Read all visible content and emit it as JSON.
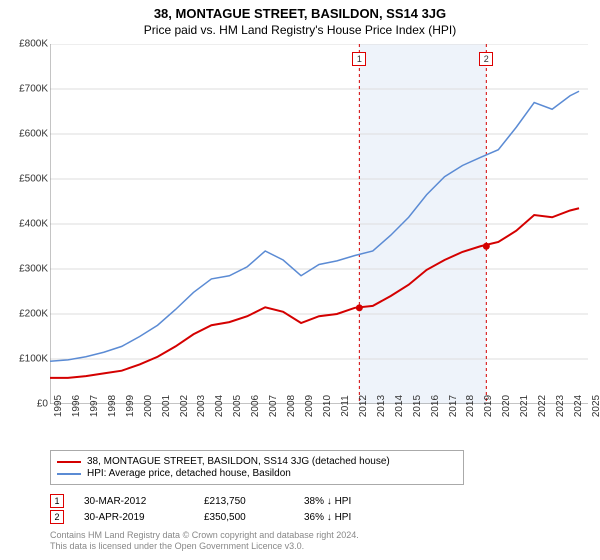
{
  "title": "38, MONTAGUE STREET, BASILDON, SS14 3JG",
  "subtitle": "Price paid vs. HM Land Registry's House Price Index (HPI)",
  "chart": {
    "type": "line",
    "background_color": "#ffffff",
    "grid_color": "#dddddd",
    "shade_color": "#eef3fa",
    "xlim": [
      1995,
      2025
    ],
    "ylim": [
      0,
      800000
    ],
    "ytick_step": 100000,
    "yticks": [
      "£0",
      "£100K",
      "£200K",
      "£300K",
      "£400K",
      "£500K",
      "£600K",
      "£700K",
      "£800K"
    ],
    "xticks": [
      "1995",
      "1996",
      "1997",
      "1998",
      "1999",
      "2000",
      "2001",
      "2002",
      "2003",
      "2004",
      "2005",
      "2006",
      "2007",
      "2008",
      "2009",
      "2010",
      "2011",
      "2012",
      "2013",
      "2014",
      "2015",
      "2016",
      "2017",
      "2018",
      "2019",
      "2020",
      "2021",
      "2022",
      "2023",
      "2024",
      "2025"
    ],
    "label_fontsize": 10,
    "title_fontsize": 13,
    "series": [
      {
        "name": "property",
        "label": "38, MONTAGUE STREET, BASILDON, SS14 3JG (detached house)",
        "color": "#d40000",
        "line_width": 2,
        "data": [
          [
            1995,
            58000
          ],
          [
            1996,
            58000
          ],
          [
            1997,
            62000
          ],
          [
            1998,
            68000
          ],
          [
            1999,
            74000
          ],
          [
            2000,
            88000
          ],
          [
            2001,
            105000
          ],
          [
            2002,
            128000
          ],
          [
            2003,
            155000
          ],
          [
            2004,
            175000
          ],
          [
            2005,
            182000
          ],
          [
            2006,
            195000
          ],
          [
            2007,
            215000
          ],
          [
            2008,
            205000
          ],
          [
            2009,
            180000
          ],
          [
            2010,
            195000
          ],
          [
            2011,
            200000
          ],
          [
            2012,
            213750
          ],
          [
            2013,
            218000
          ],
          [
            2014,
            240000
          ],
          [
            2015,
            265000
          ],
          [
            2016,
            298000
          ],
          [
            2017,
            320000
          ],
          [
            2018,
            338000
          ],
          [
            2019,
            350500
          ],
          [
            2020,
            360000
          ],
          [
            2021,
            385000
          ],
          [
            2022,
            420000
          ],
          [
            2023,
            415000
          ],
          [
            2024,
            430000
          ],
          [
            2024.5,
            435000
          ]
        ]
      },
      {
        "name": "hpi",
        "label": "HPI: Average price, detached house, Basildon",
        "color": "#5b8bd4",
        "line_width": 1.5,
        "data": [
          [
            1995,
            95000
          ],
          [
            1996,
            98000
          ],
          [
            1997,
            105000
          ],
          [
            1998,
            115000
          ],
          [
            1999,
            128000
          ],
          [
            2000,
            150000
          ],
          [
            2001,
            175000
          ],
          [
            2002,
            210000
          ],
          [
            2003,
            248000
          ],
          [
            2004,
            278000
          ],
          [
            2005,
            285000
          ],
          [
            2006,
            305000
          ],
          [
            2007,
            340000
          ],
          [
            2008,
            320000
          ],
          [
            2009,
            285000
          ],
          [
            2010,
            310000
          ],
          [
            2011,
            318000
          ],
          [
            2012,
            330000
          ],
          [
            2013,
            340000
          ],
          [
            2014,
            375000
          ],
          [
            2015,
            415000
          ],
          [
            2016,
            465000
          ],
          [
            2017,
            505000
          ],
          [
            2018,
            530000
          ],
          [
            2019,
            548000
          ],
          [
            2020,
            565000
          ],
          [
            2021,
            615000
          ],
          [
            2022,
            670000
          ],
          [
            2023,
            655000
          ],
          [
            2024,
            685000
          ],
          [
            2024.5,
            695000
          ]
        ]
      }
    ],
    "sale_markers": [
      {
        "n": "1",
        "x": 2012.25,
        "date": "30-MAR-2012",
        "price": "£213,750",
        "pct": "38% ↓ HPI",
        "y": 213750,
        "marker_color": "#d40000"
      },
      {
        "n": "2",
        "x": 2019.33,
        "date": "30-APR-2019",
        "price": "£350,500",
        "pct": "36% ↓ HPI",
        "y": 350500,
        "marker_color": "#d40000"
      }
    ],
    "marker_line_color": "#d40000",
    "marker_line_dash": "3,3"
  },
  "legend": {
    "border_color": "#aaaaaa"
  },
  "footer": {
    "line1": "Contains HM Land Registry data © Crown copyright and database right 2024.",
    "line2": "This data is licensed under the Open Government Licence v3.0."
  }
}
